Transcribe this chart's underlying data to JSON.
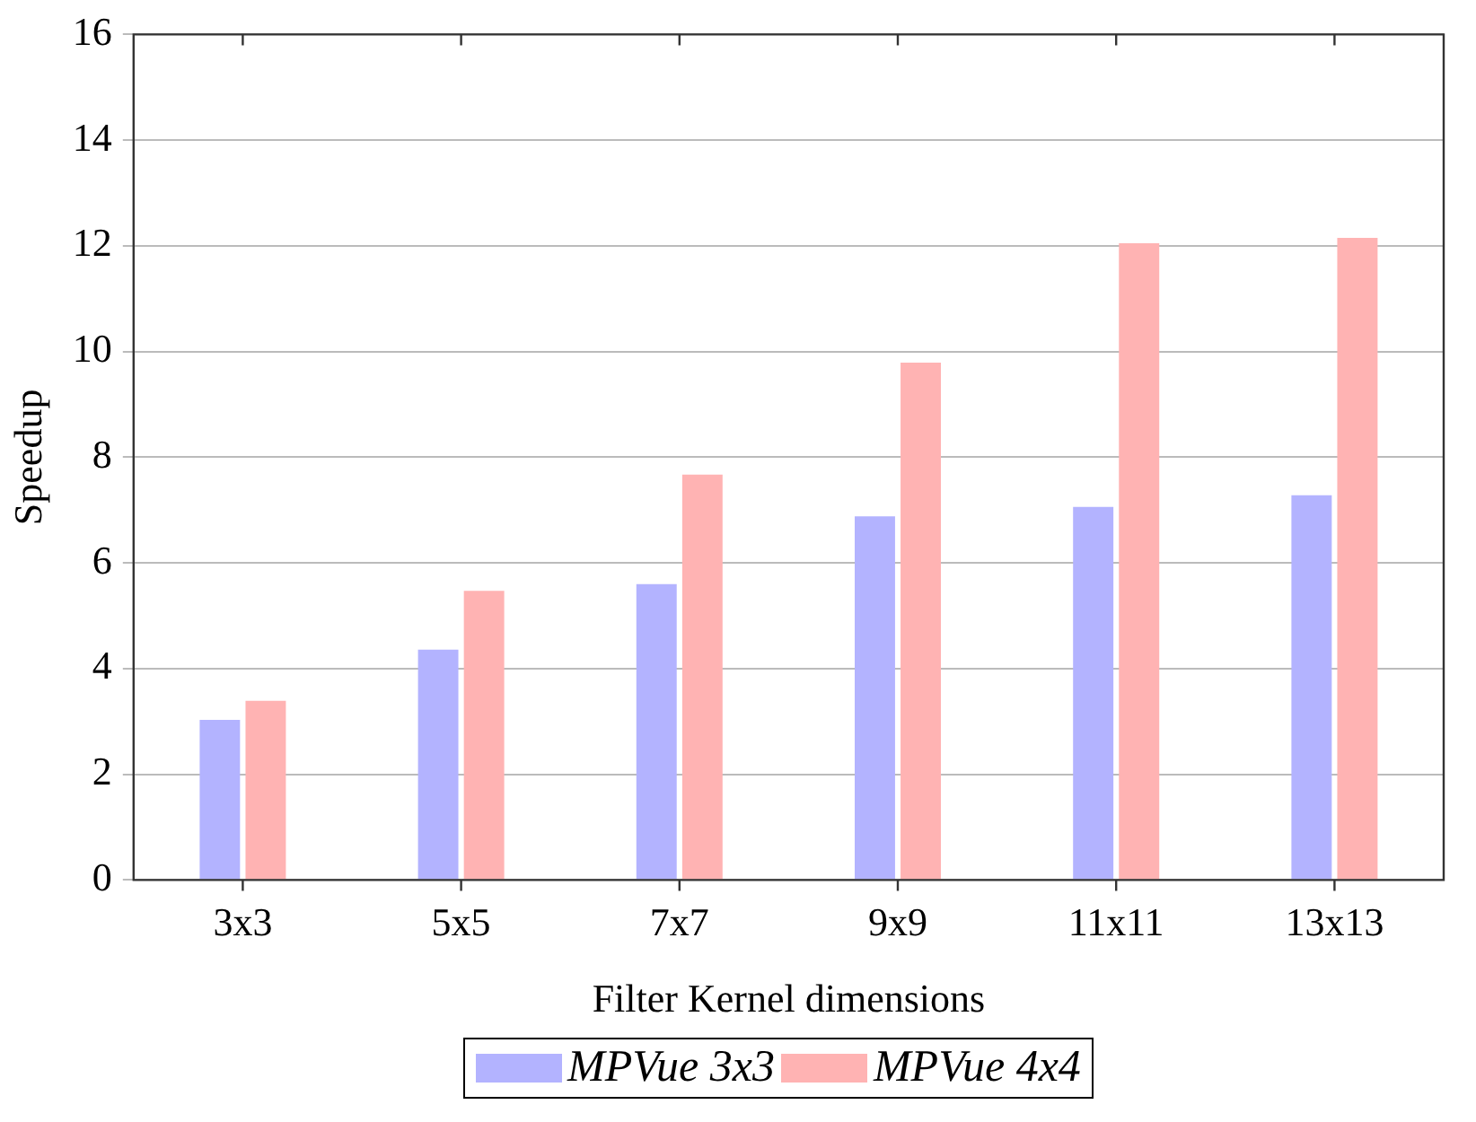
{
  "chart_data": {
    "type": "bar",
    "xlabel": "Filter Kernel dimensions",
    "ylabel": "Speedup",
    "categories": [
      "3x3",
      "5x5",
      "7x7",
      "9x9",
      "11x11",
      "13x13"
    ],
    "series": [
      {
        "name": "MPVue 3x3",
        "color": "#b3b3ff",
        "values": [
          3.03,
          4.36,
          5.6,
          6.88,
          7.06,
          7.28
        ]
      },
      {
        "name": "MPVue 4x4",
        "color": "#ffb3b3",
        "values": [
          3.39,
          5.47,
          7.67,
          9.79,
          12.05,
          12.15
        ]
      }
    ],
    "ylim": [
      0,
      16
    ],
    "yticks": [
      0,
      2,
      4,
      6,
      8,
      10,
      12,
      14,
      16
    ],
    "grid": "y",
    "legend": "bottom"
  }
}
